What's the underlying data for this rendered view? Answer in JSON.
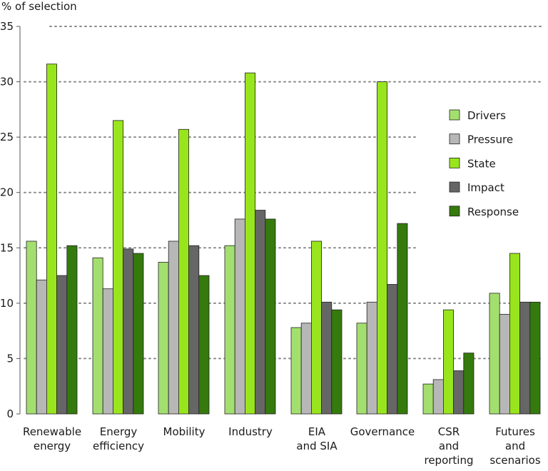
{
  "chart_data": {
    "type": "bar",
    "ylabel": "% of selection",
    "ylim": [
      0,
      35
    ],
    "yticks": [
      0,
      5,
      10,
      15,
      20,
      25,
      30,
      35
    ],
    "grid": true,
    "legend_position": "right",
    "categories": [
      [
        "Renewable",
        "energy"
      ],
      [
        "Energy",
        "efficiency"
      ],
      [
        "Mobility"
      ],
      [
        "Industry"
      ],
      [
        "EIA",
        "and SIA"
      ],
      [
        "Governance"
      ],
      [
        "CSR",
        "and",
        "reporting"
      ],
      [
        "Futures",
        "and",
        "scenarios"
      ]
    ],
    "series": [
      {
        "name": "Drivers",
        "color": "#a3df6e",
        "values": [
          15.6,
          14.1,
          13.7,
          15.2,
          7.8,
          8.2,
          2.7,
          10.9
        ]
      },
      {
        "name": "Pressure",
        "color": "#b7b7b7",
        "values": [
          12.1,
          11.3,
          15.6,
          17.6,
          8.2,
          10.1,
          3.1,
          9.0
        ]
      },
      {
        "name": "State",
        "color": "#99e51d",
        "values": [
          31.6,
          26.5,
          25.7,
          30.8,
          15.6,
          30.0,
          9.4,
          14.5
        ]
      },
      {
        "name": "Impact",
        "color": "#666666",
        "values": [
          12.5,
          14.9,
          15.2,
          18.4,
          10.1,
          11.7,
          3.9,
          10.1
        ]
      },
      {
        "name": "Response",
        "color": "#357a0d",
        "values": [
          15.2,
          14.5,
          12.5,
          17.6,
          9.4,
          17.2,
          5.5,
          10.1
        ]
      }
    ]
  }
}
